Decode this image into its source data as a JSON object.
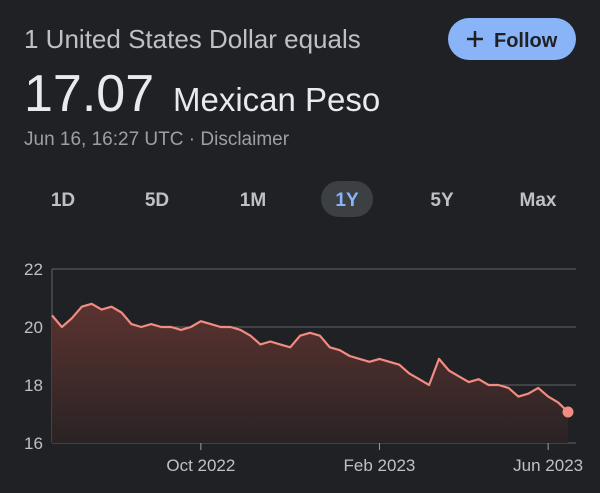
{
  "header": {
    "title": "1 United States Dollar equals",
    "price": "17.07",
    "currency": "Mexican Peso",
    "timestamp": "Jun 16, 16:27 UTC",
    "separator": "·",
    "disclaimer": "Disclaimer",
    "follow": "Follow"
  },
  "tabs": {
    "items": [
      "1D",
      "5D",
      "1M",
      "1Y",
      "5Y",
      "Max"
    ],
    "selected": "1Y"
  },
  "chart_data": {
    "type": "area",
    "color": "#f28b82",
    "categories": [
      null,
      null,
      null,
      null,
      null,
      null,
      null,
      null,
      null,
      null,
      null,
      null,
      null,
      null,
      null,
      "Oct 2022",
      null,
      null,
      null,
      null,
      null,
      null,
      null,
      null,
      null,
      null,
      null,
      null,
      null,
      null,
      null,
      null,
      null,
      "Feb 2023",
      null,
      null,
      null,
      null,
      null,
      null,
      null,
      null,
      null,
      null,
      null,
      null,
      null,
      null,
      null,
      null,
      "Jun 2023",
      null,
      null
    ],
    "values": [
      20.4,
      20.0,
      20.3,
      20.7,
      20.8,
      20.6,
      20.7,
      20.5,
      20.1,
      20.0,
      20.1,
      20.0,
      20.0,
      19.9,
      20.0,
      20.2,
      20.1,
      20.0,
      20.0,
      19.9,
      19.7,
      19.4,
      19.5,
      19.4,
      19.3,
      19.7,
      19.8,
      19.7,
      19.3,
      19.2,
      19.0,
      18.9,
      18.8,
      18.9,
      18.8,
      18.7,
      18.4,
      18.2,
      18.0,
      18.9,
      18.5,
      18.3,
      18.1,
      18.2,
      18.0,
      18.0,
      17.9,
      17.6,
      17.7,
      17.9,
      17.6,
      17.4,
      17.07
    ],
    "ylim": [
      16,
      22
    ],
    "yticks": [
      16,
      18,
      20,
      22
    ],
    "grid": true
  }
}
